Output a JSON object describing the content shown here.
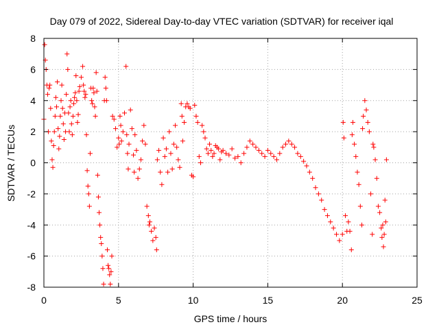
{
  "chart_data": {
    "type": "scatter",
    "title": "Day 079 of 2022, Sidereal Day-to-day VTEC variation (SDTVAR) for receiver iqal",
    "xlabel": "GPS time / hours",
    "ylabel": "SDTVAR / TECUs",
    "xlim": [
      0,
      25
    ],
    "ylim": [
      -8,
      8
    ],
    "xticks": [
      "0",
      "5",
      "10",
      "15",
      "20",
      "25"
    ],
    "yticks": [
      "-8",
      "-6",
      "-4",
      "-2",
      "0",
      "2",
      "4",
      "6",
      "8"
    ],
    "grid": true,
    "marker": "plus",
    "color": "#ff0000",
    "series": [
      {
        "name": "SDTVAR",
        "points": [
          [
            0.0,
            2.8
          ],
          [
            0.05,
            7.6
          ],
          [
            0.1,
            6.6
          ],
          [
            0.15,
            6.0
          ],
          [
            0.2,
            5.0
          ],
          [
            0.25,
            4.4
          ],
          [
            0.3,
            2.0
          ],
          [
            0.35,
            4.8
          ],
          [
            0.4,
            5.0
          ],
          [
            0.45,
            3.5
          ],
          [
            0.5,
            1.4
          ],
          [
            0.55,
            0.2
          ],
          [
            0.6,
            -0.3
          ],
          [
            0.65,
            1.1
          ],
          [
            0.7,
            2.0
          ],
          [
            0.75,
            3.0
          ],
          [
            0.8,
            4.2
          ],
          [
            0.85,
            3.6
          ],
          [
            0.9,
            5.2
          ],
          [
            0.95,
            2.2
          ],
          [
            1.0,
            0.9
          ],
          [
            1.05,
            1.7
          ],
          [
            1.1,
            3.0
          ],
          [
            1.15,
            4.0
          ],
          [
            1.2,
            5.0
          ],
          [
            1.25,
            3.5
          ],
          [
            1.3,
            2.5
          ],
          [
            1.35,
            1.5
          ],
          [
            1.4,
            3.2
          ],
          [
            1.45,
            2.0
          ],
          [
            1.5,
            4.4
          ],
          [
            1.55,
            7.0
          ],
          [
            1.6,
            6.0
          ],
          [
            1.65,
            3.2
          ],
          [
            1.7,
            2.0
          ],
          [
            1.75,
            3.6
          ],
          [
            1.8,
            4.0
          ],
          [
            1.85,
            2.5
          ],
          [
            1.9,
            1.8
          ],
          [
            1.95,
            3.0
          ],
          [
            2.0,
            3.8
          ],
          [
            2.05,
            4.2
          ],
          [
            2.1,
            4.5
          ],
          [
            2.15,
            5.6
          ],
          [
            2.2,
            4.0
          ],
          [
            2.25,
            2.6
          ],
          [
            2.3,
            3.1
          ],
          [
            2.35,
            4.6
          ],
          [
            2.4,
            4.9
          ],
          [
            2.5,
            5.5
          ],
          [
            2.6,
            6.2
          ],
          [
            2.65,
            5.0
          ],
          [
            2.7,
            4.6
          ],
          [
            2.75,
            4.2
          ],
          [
            2.8,
            4.4
          ],
          [
            2.85,
            1.8
          ],
          [
            2.9,
            -0.5
          ],
          [
            2.95,
            -1.5
          ],
          [
            3.0,
            -2.0
          ],
          [
            3.05,
            -2.8
          ],
          [
            3.1,
            0.6
          ],
          [
            3.15,
            4.8
          ],
          [
            3.2,
            4.0
          ],
          [
            3.25,
            3.8
          ],
          [
            3.3,
            4.8
          ],
          [
            3.35,
            4.5
          ],
          [
            3.4,
            3.6
          ],
          [
            3.45,
            3.0
          ],
          [
            3.5,
            5.8
          ],
          [
            3.55,
            4.6
          ],
          [
            3.6,
            -0.8
          ],
          [
            3.65,
            -2.2
          ],
          [
            3.7,
            -3.2
          ],
          [
            3.75,
            -4.0
          ],
          [
            3.8,
            -4.8
          ],
          [
            3.85,
            -5.2
          ],
          [
            3.9,
            -6.0
          ],
          [
            3.95,
            -6.8
          ],
          [
            4.0,
            -7.8
          ],
          [
            4.05,
            4.0
          ],
          [
            4.1,
            5.5
          ],
          [
            4.15,
            4.8
          ],
          [
            4.2,
            4.0
          ],
          [
            4.25,
            -5.6
          ],
          [
            4.3,
            -6.6
          ],
          [
            4.35,
            -6.8
          ],
          [
            4.4,
            -7.2
          ],
          [
            4.45,
            -7.8
          ],
          [
            4.5,
            -7.0
          ],
          [
            4.55,
            -6.0
          ],
          [
            4.6,
            3.0
          ],
          [
            4.7,
            2.8
          ],
          [
            4.8,
            2.2
          ],
          [
            4.9,
            1.0
          ],
          [
            5.0,
            1.6
          ],
          [
            5.05,
            1.2
          ],
          [
            5.1,
            3.0
          ],
          [
            5.15,
            2.4
          ],
          [
            5.2,
            1.4
          ],
          [
            5.3,
            2.0
          ],
          [
            5.4,
            3.2
          ],
          [
            5.5,
            6.2
          ],
          [
            5.55,
            1.8
          ],
          [
            5.6,
            0.6
          ],
          [
            5.65,
            -0.4
          ],
          [
            5.7,
            1.2
          ],
          [
            5.8,
            3.4
          ],
          [
            5.9,
            2.2
          ],
          [
            6.0,
            0.5
          ],
          [
            6.05,
            -0.6
          ],
          [
            6.1,
            1.8
          ],
          [
            6.2,
            0.8
          ],
          [
            6.3,
            -1.0
          ],
          [
            6.4,
            -0.4
          ],
          [
            6.5,
            0.2
          ],
          [
            6.6,
            1.4
          ],
          [
            6.7,
            2.4
          ],
          [
            6.8,
            1.2
          ],
          [
            6.9,
            -2.8
          ],
          [
            7.0,
            -3.4
          ],
          [
            7.05,
            -4.0
          ],
          [
            7.1,
            -3.8
          ],
          [
            7.2,
            -4.4
          ],
          [
            7.3,
            -5.0
          ],
          [
            7.4,
            -4.2
          ],
          [
            7.5,
            -4.8
          ],
          [
            7.55,
            -5.6
          ],
          [
            7.6,
            0.2
          ],
          [
            7.7,
            0.8
          ],
          [
            7.8,
            -0.6
          ],
          [
            7.9,
            -1.4
          ],
          [
            8.0,
            1.6
          ],
          [
            8.1,
            0.4
          ],
          [
            8.2,
            0.9
          ],
          [
            8.3,
            -0.6
          ],
          [
            8.4,
            2.0
          ],
          [
            8.5,
            0.6
          ],
          [
            8.6,
            -0.4
          ],
          [
            8.7,
            1.2
          ],
          [
            8.8,
            2.4
          ],
          [
            8.9,
            1.0
          ],
          [
            9.0,
            0.2
          ],
          [
            9.1,
            -0.3
          ],
          [
            9.2,
            3.8
          ],
          [
            9.25,
            3.0
          ],
          [
            9.3,
            1.4
          ],
          [
            9.4,
            2.6
          ],
          [
            9.5,
            3.6
          ],
          [
            9.6,
            3.8
          ],
          [
            9.7,
            3.6
          ],
          [
            9.8,
            3.5
          ],
          [
            9.9,
            -0.8
          ],
          [
            10.0,
            -0.9
          ],
          [
            10.1,
            3.7
          ],
          [
            10.2,
            3.0
          ],
          [
            10.3,
            2.6
          ],
          [
            10.4,
            0.4
          ],
          [
            10.5,
            0.0
          ],
          [
            10.6,
            2.4
          ],
          [
            10.7,
            2.0
          ],
          [
            10.8,
            1.6
          ],
          [
            10.9,
            0.9
          ],
          [
            11.0,
            0.6
          ],
          [
            11.1,
            1.2
          ],
          [
            11.2,
            0.8
          ],
          [
            11.3,
            0.4
          ],
          [
            11.4,
            0.6
          ],
          [
            11.5,
            1.1
          ],
          [
            11.6,
            1.0
          ],
          [
            11.7,
            0.9
          ],
          [
            11.8,
            0.2
          ],
          [
            11.9,
            0.7
          ],
          [
            12.0,
            0.8
          ],
          [
            12.2,
            0.6
          ],
          [
            12.4,
            0.5
          ],
          [
            12.6,
            0.9
          ],
          [
            12.8,
            0.3
          ],
          [
            13.0,
            0.4
          ],
          [
            13.2,
            0.0
          ],
          [
            13.4,
            0.6
          ],
          [
            13.6,
            1.0
          ],
          [
            13.8,
            1.4
          ],
          [
            14.0,
            1.2
          ],
          [
            14.2,
            1.0
          ],
          [
            14.4,
            0.8
          ],
          [
            14.6,
            0.6
          ],
          [
            14.8,
            0.4
          ],
          [
            15.0,
            0.8
          ],
          [
            15.2,
            0.6
          ],
          [
            15.4,
            0.4
          ],
          [
            15.6,
            0.2
          ],
          [
            15.8,
            0.6
          ],
          [
            16.0,
            1.0
          ],
          [
            16.2,
            1.2
          ],
          [
            16.4,
            1.4
          ],
          [
            16.6,
            1.2
          ],
          [
            16.8,
            1.0
          ],
          [
            17.0,
            0.6
          ],
          [
            17.2,
            0.4
          ],
          [
            17.4,
            0.1
          ],
          [
            17.6,
            -0.2
          ],
          [
            17.8,
            -0.6
          ],
          [
            18.0,
            -1.0
          ],
          [
            18.2,
            -1.6
          ],
          [
            18.4,
            -2.0
          ],
          [
            18.6,
            -2.4
          ],
          [
            18.8,
            -3.0
          ],
          [
            19.0,
            -3.4
          ],
          [
            19.2,
            -3.8
          ],
          [
            19.4,
            -4.2
          ],
          [
            19.6,
            -4.6
          ],
          [
            19.8,
            -5.0
          ],
          [
            20.0,
            -4.6
          ],
          [
            20.05,
            2.6
          ],
          [
            20.1,
            1.6
          ],
          [
            20.2,
            -3.4
          ],
          [
            20.3,
            -4.4
          ],
          [
            20.4,
            -3.8
          ],
          [
            20.5,
            -4.4
          ],
          [
            20.6,
            -5.6
          ],
          [
            20.65,
            1.8
          ],
          [
            20.7,
            2.6
          ],
          [
            20.8,
            1.2
          ],
          [
            20.9,
            0.4
          ],
          [
            21.0,
            -0.6
          ],
          [
            21.1,
            -1.4
          ],
          [
            21.2,
            -2.8
          ],
          [
            21.3,
            -4.0
          ],
          [
            21.35,
            2.2
          ],
          [
            21.4,
            3.0
          ],
          [
            21.5,
            4.0
          ],
          [
            21.6,
            3.4
          ],
          [
            21.7,
            2.6
          ],
          [
            21.8,
            2.0
          ],
          [
            21.9,
            -2.0
          ],
          [
            22.0,
            -4.6
          ],
          [
            22.05,
            1.2
          ],
          [
            22.1,
            1.0
          ],
          [
            22.2,
            0.2
          ],
          [
            22.3,
            -1.0
          ],
          [
            22.4,
            -2.8
          ],
          [
            22.5,
            -3.2
          ],
          [
            22.6,
            -4.2
          ],
          [
            22.65,
            -4.8
          ],
          [
            22.7,
            -4.0
          ],
          [
            22.75,
            -5.4
          ],
          [
            22.8,
            -4.6
          ],
          [
            22.85,
            -2.4
          ],
          [
            22.9,
            -3.8
          ],
          [
            22.95,
            0.2
          ]
        ]
      }
    ]
  }
}
